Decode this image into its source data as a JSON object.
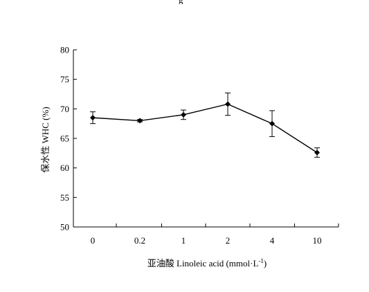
{
  "top_fragment": "g",
  "chart_data": {
    "type": "line",
    "categories": [
      "0",
      "0.2",
      "1",
      "2",
      "4",
      "10"
    ],
    "series": [
      {
        "values": [
          68.5,
          68.0,
          69.0,
          70.8,
          67.5,
          62.6
        ],
        "error": [
          1.0,
          0.2,
          0.8,
          1.9,
          2.2,
          0.8
        ],
        "color": "#000000",
        "marker": "diamond"
      }
    ],
    "xlabel": "亚油酸 Linoleic acid (mmol·L",
    "xlabel_sup": "-1",
    "xlabel_close": ")",
    "ylabel": "保水性 WHC (%)",
    "ylim": [
      50,
      80
    ],
    "yticks": [
      "50",
      "55",
      "60",
      "65",
      "70",
      "75",
      "80"
    ],
    "grid": false,
    "legend": "none"
  }
}
